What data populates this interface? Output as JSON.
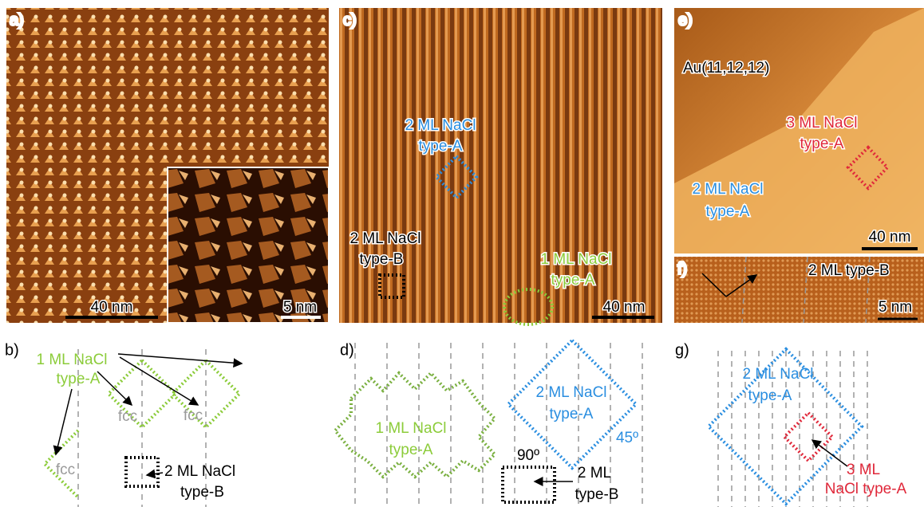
{
  "panels": {
    "a": {
      "label": "a)",
      "scale_bar": "40 nm",
      "inset_scale_bar": "5 nm"
    },
    "c": {
      "label": "c)",
      "annotations": [
        [
          "2 ML NaCl",
          "type-A"
        ],
        [
          "2 ML NaCl",
          "type-B"
        ],
        [
          "1 ML NaCl",
          "type-A"
        ]
      ],
      "scale_bar": "40 nm"
    },
    "e": {
      "label": "e)",
      "substrate": "Au(11,12,12)",
      "annotations": [
        [
          "3 ML NaCl",
          "type-A"
        ],
        [
          "2 ML NaCl",
          "type-A"
        ]
      ],
      "scale_bar": "40 nm"
    },
    "f": {
      "label": "f)",
      "annotation": "2 ML type-B",
      "scale_bar": "5 nm"
    },
    "b": {
      "label": "b)",
      "annotations": [
        [
          "1 ML NaCl",
          "type-A"
        ],
        [
          "2 ML NaCl",
          "type-B"
        ]
      ],
      "sites": [
        "fcc",
        "fcc",
        "fcc"
      ]
    },
    "d": {
      "label": "d)",
      "annotations": [
        [
          "1 ML NaCl",
          "type-A"
        ],
        [
          "2 ML NaCl",
          "type-A"
        ],
        [
          "2 ML",
          "type-B"
        ]
      ],
      "angles": [
        "45º",
        "90º"
      ]
    },
    "g": {
      "label": "g)",
      "annotations": [
        [
          "2 ML NaCl",
          "type-A"
        ],
        [
          "3 ML",
          "NaCl type-A"
        ]
      ]
    }
  }
}
